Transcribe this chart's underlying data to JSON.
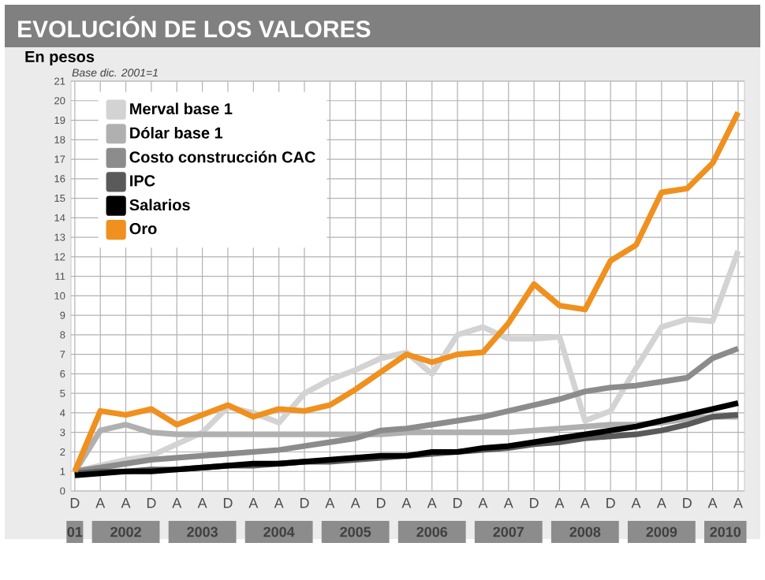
{
  "chart_data": {
    "type": "line",
    "title": "EVOLUCIÓN DE LOS VALORES",
    "subtitle": "En pesos",
    "annotations": [
      "Base dic. 2001=1",
      "01",
      "2002",
      "2003",
      "2004",
      "2005",
      "2006",
      "2007",
      "2008",
      "2009",
      "2010"
    ],
    "categories": [
      "D",
      "A",
      "A",
      "D",
      "A",
      "A",
      "D",
      "A",
      "A",
      "D",
      "A",
      "A",
      "D",
      "A",
      "A",
      "D",
      "A",
      "A",
      "D",
      "A",
      "A",
      "D",
      "A",
      "A",
      "D",
      "A",
      "A"
    ],
    "ylim": [
      0,
      21
    ],
    "yticks": [
      0,
      1,
      2,
      3,
      4,
      5,
      6,
      7,
      8,
      9,
      10,
      11,
      12,
      13,
      14,
      15,
      16,
      17,
      18,
      19,
      20,
      21
    ],
    "grid": true,
    "legend": "top left",
    "marker": "none",
    "line_style": "solid",
    "series": [
      {
        "name": "Merval base 1",
        "color": "#d3d3d3",
        "values": [
          1.0,
          1.3,
          1.6,
          1.8,
          2.4,
          3.0,
          4.3,
          4.0,
          3.5,
          5.0,
          5.7,
          6.2,
          6.8,
          7.1,
          6.0,
          8.0,
          8.4,
          7.8,
          7.8,
          7.9,
          3.6,
          4.1,
          6.3,
          8.4,
          8.8,
          8.7,
          12.3
        ]
      },
      {
        "name": "Dólar base 1",
        "color": "#b0b0b0",
        "values": [
          1.0,
          3.1,
          3.4,
          3.0,
          2.9,
          2.9,
          2.9,
          2.9,
          2.9,
          2.9,
          2.9,
          2.9,
          2.9,
          3.0,
          3.0,
          3.0,
          3.0,
          3.0,
          3.1,
          3.2,
          3.3,
          3.4,
          3.4,
          3.5,
          3.7,
          3.8,
          3.8
        ]
      },
      {
        "name": "Costo construcción CAC",
        "color": "#8c8c8c",
        "values": [
          1.0,
          1.2,
          1.4,
          1.6,
          1.7,
          1.8,
          1.9,
          2.0,
          2.1,
          2.3,
          2.5,
          2.7,
          3.1,
          3.2,
          3.4,
          3.6,
          3.8,
          4.1,
          4.4,
          4.7,
          5.1,
          5.3,
          5.4,
          5.6,
          5.8,
          6.8,
          7.3
        ]
      },
      {
        "name": "IPC",
        "color": "#5a5a5a",
        "values": [
          0.9,
          1.0,
          1.0,
          1.1,
          1.1,
          1.2,
          1.3,
          1.3,
          1.4,
          1.5,
          1.5,
          1.6,
          1.7,
          1.8,
          1.9,
          2.0,
          2.1,
          2.2,
          2.4,
          2.5,
          2.7,
          2.8,
          2.9,
          3.1,
          3.4,
          3.8,
          3.9
        ]
      },
      {
        "name": "Salarios",
        "color": "#000000",
        "values": [
          0.8,
          0.9,
          1.0,
          1.0,
          1.1,
          1.2,
          1.3,
          1.4,
          1.4,
          1.5,
          1.6,
          1.7,
          1.8,
          1.8,
          2.0,
          2.0,
          2.2,
          2.3,
          2.5,
          2.7,
          2.9,
          3.1,
          3.3,
          3.6,
          3.9,
          4.2,
          4.5
        ]
      },
      {
        "name": "Oro",
        "color": "#f0901e",
        "values": [
          1.0,
          4.1,
          3.9,
          4.2,
          3.4,
          3.9,
          4.4,
          3.8,
          4.2,
          4.1,
          4.4,
          5.2,
          6.1,
          7.0,
          6.6,
          7.0,
          7.1,
          8.6,
          10.6,
          9.5,
          9.3,
          11.8,
          12.6,
          15.3,
          15.5,
          16.8,
          19.4
        ]
      }
    ]
  }
}
